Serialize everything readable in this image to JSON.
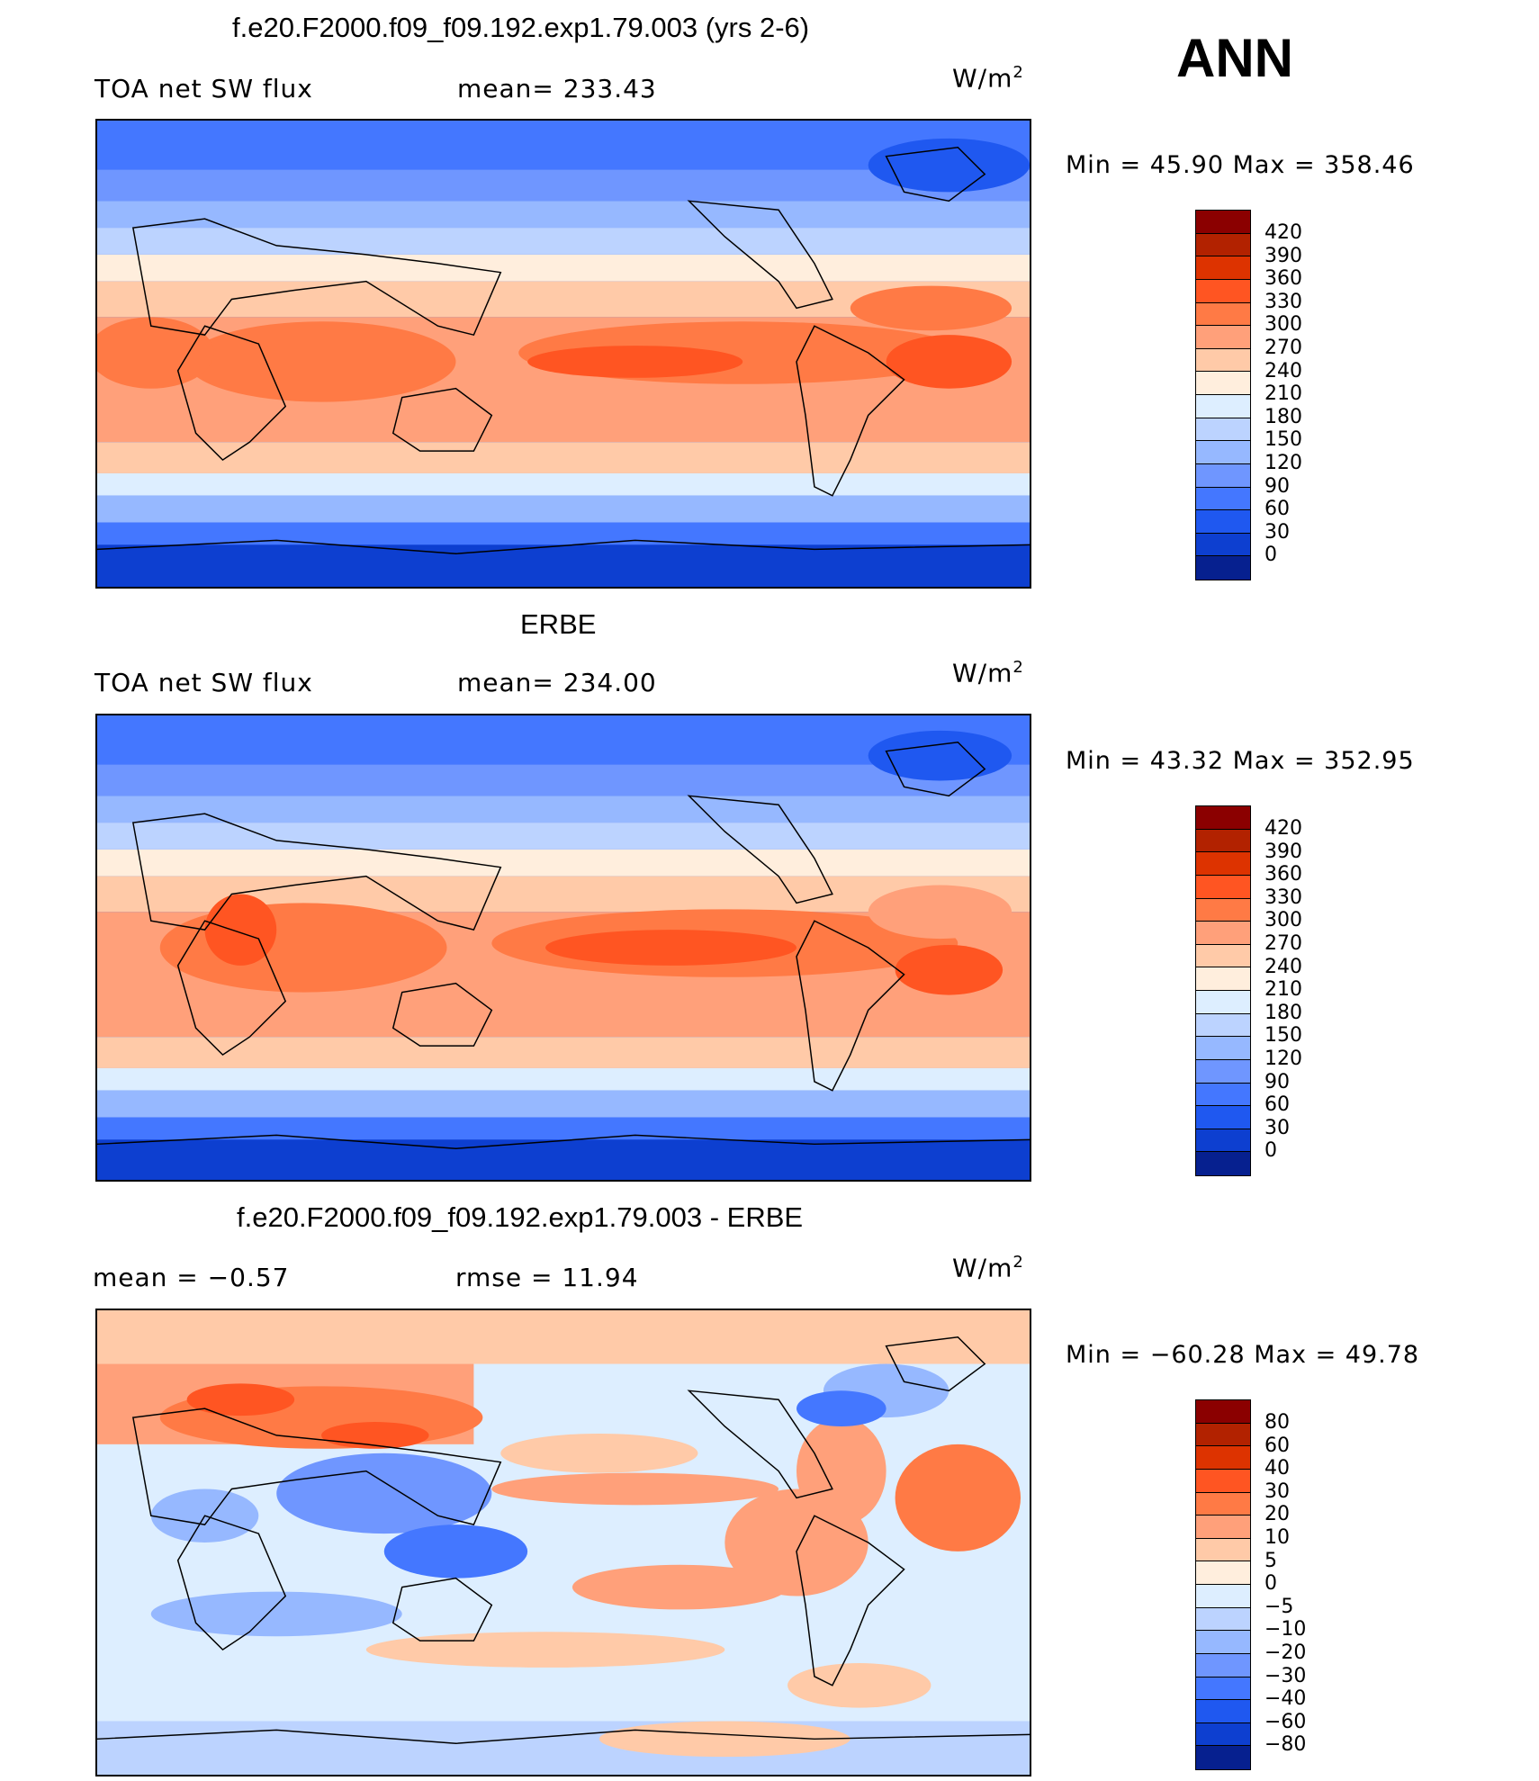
{
  "season": "ANN",
  "panels": [
    {
      "title": "f.e20.F2000.f09_f09.192.exp1.79.003 (yrs 2-6)",
      "left_label": "TOA net SW flux",
      "center_label": "mean= 233.43",
      "units": "W/m",
      "units_sup": "2",
      "minmax": "Min =   45.90 Max = 358.46",
      "colorbar_labels": [
        "420",
        "390",
        "360",
        "330",
        "300",
        "270",
        "240",
        "210",
        "180",
        "150",
        "120",
        "90",
        "60",
        "30",
        "0"
      ]
    },
    {
      "title": "ERBE",
      "left_label": "TOA net SW flux",
      "center_label": "mean= 234.00",
      "units": "W/m",
      "units_sup": "2",
      "minmax": "Min =   43.32 Max = 352.95",
      "colorbar_labels": [
        "420",
        "390",
        "360",
        "330",
        "300",
        "270",
        "240",
        "210",
        "180",
        "150",
        "120",
        "90",
        "60",
        "30",
        "0"
      ]
    },
    {
      "title": "f.e20.F2000.f09_f09.192.exp1.79.003 - ERBE",
      "left_label": "mean =   −0.57",
      "center_label": "rmse =   11.94",
      "units": "W/m",
      "units_sup": "2",
      "minmax": "Min = −60.28 Max =   49.78",
      "colorbar_labels": [
        "80",
        "60",
        "40",
        "30",
        "20",
        "10",
        "5",
        "0",
        "−5",
        "−10",
        "−20",
        "−30",
        "−40",
        "−60",
        "−80"
      ]
    }
  ],
  "colors": {
    "abs_scale": [
      "#8b0000",
      "#b22200",
      "#dd3300",
      "#ff5522",
      "#ff7a45",
      "#ffa07a",
      "#ffcaa8",
      "#ffeedd",
      "#ddeeff",
      "#bcd3ff",
      "#96b8ff",
      "#6f96ff",
      "#4477ff",
      "#1f58f0",
      "#0d3fd0",
      "#06208f"
    ],
    "diff_scale": [
      "#8b0000",
      "#b22200",
      "#dd3300",
      "#ff5522",
      "#ff7a45",
      "#ffa07a",
      "#ffcaa8",
      "#ffeedd",
      "#ddeeff",
      "#bcd3ff",
      "#96b8ff",
      "#6f96ff",
      "#4477ff",
      "#1f58f0",
      "#0d3fd0",
      "#06208f"
    ]
  }
}
